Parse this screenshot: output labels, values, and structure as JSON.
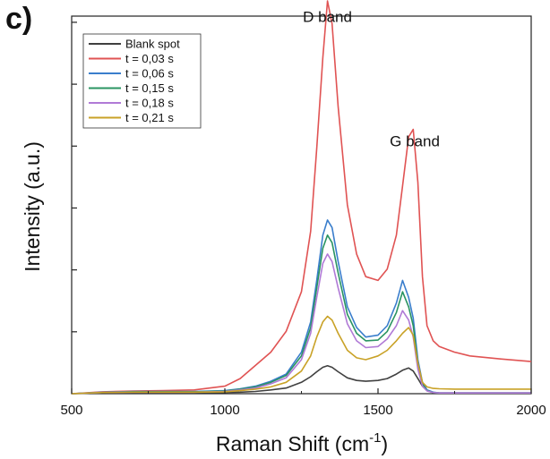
{
  "panel_label": "c)",
  "chart_data": {
    "type": "line",
    "title": "",
    "xlabel": "Raman Shift (cm",
    "xlabel_sup": "-1",
    "xlabel_close": ")",
    "ylabel": "Intensity (a.u.)",
    "xlim": [
      500,
      2000
    ],
    "ylim": [
      0,
      1.0
    ],
    "xticks": [
      500,
      1000,
      1500,
      2000
    ],
    "y_ticks_labeled": false,
    "grid": false,
    "legend_position": "top-left",
    "annotations": [
      {
        "text": "D band",
        "x": 1335,
        "y": 0.985
      },
      {
        "text": "G band",
        "x": 1620,
        "y": 0.655
      }
    ],
    "x": [
      500,
      600,
      700,
      800,
      900,
      1000,
      1050,
      1100,
      1150,
      1200,
      1250,
      1280,
      1300,
      1320,
      1335,
      1350,
      1370,
      1400,
      1430,
      1460,
      1500,
      1530,
      1560,
      1580,
      1600,
      1615,
      1630,
      1645,
      1660,
      1680,
      1700,
      1750,
      1800,
      1900,
      2000
    ],
    "series": [
      {
        "name": "Blank spot",
        "color": "#404040",
        "values": [
          0.0,
          0.002,
          0.002,
          0.002,
          0.002,
          0.003,
          0.004,
          0.006,
          0.01,
          0.015,
          0.03,
          0.045,
          0.058,
          0.07,
          0.074,
          0.07,
          0.058,
          0.042,
          0.035,
          0.033,
          0.035,
          0.04,
          0.052,
          0.062,
          0.068,
          0.06,
          0.04,
          0.02,
          0.008,
          0.003,
          0.002,
          0.002,
          0.002,
          0.002,
          0.002
        ]
      },
      {
        "name": "t = 0,03 s",
        "color": "#e05353",
        "values": [
          0.0,
          0.005,
          0.007,
          0.008,
          0.01,
          0.02,
          0.04,
          0.075,
          0.11,
          0.165,
          0.27,
          0.43,
          0.65,
          0.89,
          1.04,
          0.98,
          0.76,
          0.5,
          0.37,
          0.31,
          0.3,
          0.33,
          0.42,
          0.55,
          0.68,
          0.7,
          0.56,
          0.31,
          0.18,
          0.14,
          0.125,
          0.11,
          0.1,
          0.092,
          0.085
        ]
      },
      {
        "name": "t = 0,06 s",
        "color": "#3a7ecc",
        "values": [
          0.0,
          0.004,
          0.006,
          0.006,
          0.006,
          0.008,
          0.013,
          0.02,
          0.033,
          0.052,
          0.11,
          0.19,
          0.3,
          0.42,
          0.46,
          0.44,
          0.35,
          0.23,
          0.175,
          0.15,
          0.155,
          0.18,
          0.24,
          0.3,
          0.255,
          0.2,
          0.09,
          0.03,
          0.01,
          0.004,
          0.002,
          0.002,
          0.002,
          0.002,
          0.002
        ]
      },
      {
        "name": "t = 0,15 s",
        "color": "#2a9462",
        "values": [
          0.0,
          0.003,
          0.005,
          0.005,
          0.005,
          0.007,
          0.012,
          0.018,
          0.03,
          0.048,
          0.1,
          0.175,
          0.28,
          0.385,
          0.42,
          0.4,
          0.32,
          0.21,
          0.16,
          0.14,
          0.142,
          0.165,
          0.215,
          0.27,
          0.23,
          0.18,
          0.08,
          0.025,
          0.008,
          0.003,
          0.002,
          0.002,
          0.002,
          0.002,
          0.002
        ]
      },
      {
        "name": "t = 0,18 s",
        "color": "#b07ad6",
        "values": [
          0.0,
          0.003,
          0.004,
          0.004,
          0.004,
          0.006,
          0.01,
          0.015,
          0.026,
          0.042,
          0.09,
          0.16,
          0.255,
          0.345,
          0.37,
          0.35,
          0.28,
          0.185,
          0.14,
          0.122,
          0.125,
          0.145,
          0.18,
          0.22,
          0.195,
          0.15,
          0.065,
          0.02,
          0.007,
          0.003,
          0.002,
          0.002,
          0.002,
          0.002,
          0.002
        ]
      },
      {
        "name": "t = 0,21 s",
        "color": "#c9a227",
        "values": [
          0.0,
          0.003,
          0.004,
          0.004,
          0.004,
          0.005,
          0.008,
          0.012,
          0.018,
          0.03,
          0.06,
          0.1,
          0.15,
          0.19,
          0.205,
          0.195,
          0.16,
          0.115,
          0.095,
          0.09,
          0.1,
          0.115,
          0.14,
          0.16,
          0.175,
          0.155,
          0.08,
          0.03,
          0.018,
          0.014,
          0.013,
          0.012,
          0.012,
          0.012,
          0.012
        ]
      }
    ]
  }
}
